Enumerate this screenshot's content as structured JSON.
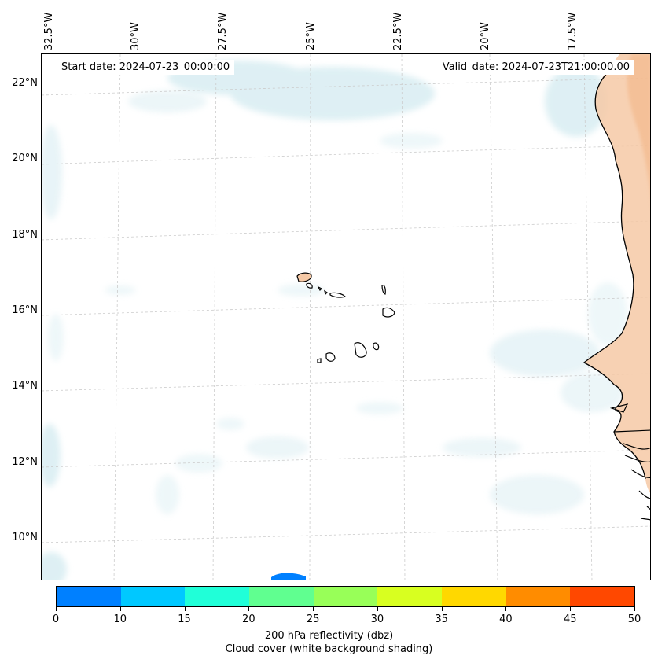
{
  "header": {
    "start_date": "Start date: 2024-07-23_00:00:00",
    "valid_date": "Valid_date: 2024-07-23T21:00:00.00"
  },
  "lon_labels": [
    "32.5°W",
    "30°W",
    "27.5°W",
    "25°W",
    "22.5°W",
    "20°W",
    "17.5°W"
  ],
  "lat_labels": [
    "22°N",
    "20°N",
    "18°N",
    "16°N",
    "14°N",
    "12°N",
    "10°N"
  ],
  "colorbar": {
    "ticks": [
      "0",
      "10",
      "15",
      "20",
      "25",
      "30",
      "35",
      "40",
      "45",
      "50"
    ],
    "colors": [
      "#0080ff",
      "#00c8ff",
      "#20ffd8",
      "#60ff90",
      "#98ff58",
      "#d8ff20",
      "#ffd800",
      "#ff8c00",
      "#ff4800"
    ],
    "title_line1": "200 hPa reflectivity (dbz)",
    "title_line2": "Cloud cover (white background shading)"
  },
  "colors": {
    "cloud": "#d8edf2",
    "land_warm": "#f6c9a6",
    "coast": "#000000",
    "grid": "#cccccc"
  }
}
